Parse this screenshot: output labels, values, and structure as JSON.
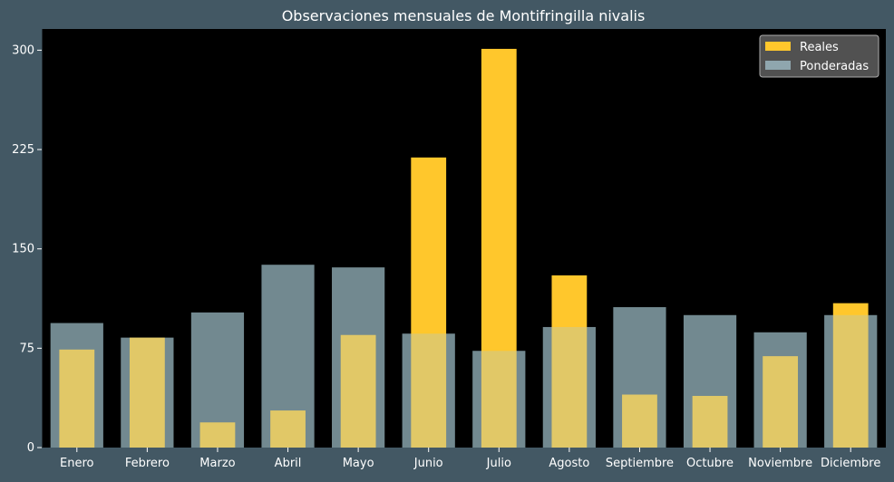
{
  "chart_data": {
    "type": "bar",
    "title": "Observaciones mensuales de Montifringilla nivalis",
    "xlabel": "",
    "ylabel": "",
    "categories": [
      "Enero",
      "Febrero",
      "Marzo",
      "Abril",
      "Mayo",
      "Junio",
      "Julio",
      "Agosto",
      "Septiembre",
      "Octubre",
      "Noviembre",
      "Diciembre"
    ],
    "series": [
      {
        "name": "Reales",
        "values": [
          74,
          83,
          19,
          28,
          85,
          219,
          301,
          130,
          40,
          39,
          69,
          109
        ]
      },
      {
        "name": "Ponderadas",
        "values": [
          94,
          83,
          102,
          138,
          136,
          86,
          73,
          91,
          106,
          100,
          87,
          100
        ]
      }
    ],
    "yticks": [
      0,
      75,
      150,
      225,
      300
    ],
    "ylim": [
      0,
      316
    ],
    "grid": false,
    "legend": "top-right",
    "colors": {
      "figure_bg": "#435864",
      "plot_bg": "#000000",
      "reales": "#ffc72c",
      "ponderadas": "#a9cbd6",
      "text": "#ffffff",
      "legend_bg": "#555555",
      "legend_border": "#aaaaaa"
    }
  }
}
